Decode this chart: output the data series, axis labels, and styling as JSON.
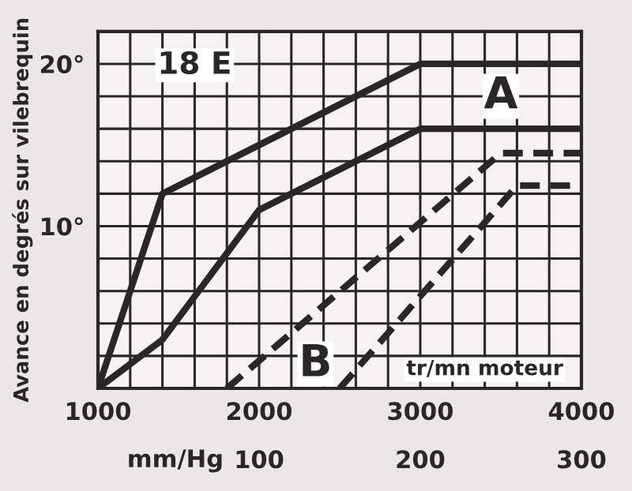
{
  "chart_data": {
    "type": "line",
    "title": "18 E",
    "xlabel": "tr/mn moteur",
    "ylabel": "Avance en degrés sur vilebrequin",
    "x2label": "mm/Hg",
    "series": [
      {
        "color": "#2a2628",
        "line_style": "solid",
        "x": [
          1000,
          1400,
          3000,
          4000
        ],
        "values": [
          0,
          12,
          20,
          20
        ]
      },
      {
        "color": "#2a2628",
        "line_style": "solid",
        "x": [
          1000,
          1400,
          2000,
          3000,
          4000
        ],
        "values": [
          0,
          3,
          11,
          16,
          16
        ]
      },
      {
        "color": "#2a2628",
        "line_style": "dashed",
        "x": [
          1800,
          3500,
          4000
        ],
        "values": [
          0,
          14.5,
          14.5
        ]
      },
      {
        "color": "#2a2628",
        "line_style": "dashed",
        "x": [
          2500,
          3600,
          4000
        ],
        "values": [
          0,
          12.5,
          12.5
        ]
      }
    ],
    "annotations": [
      {
        "text": "A",
        "x": 3500,
        "y": 18
      },
      {
        "text": "B",
        "x": 2350,
        "y": 1.5
      }
    ],
    "xlim": [
      1000,
      4000
    ],
    "xticks": [
      1000,
      {
        "value": 1200,
        "label": null
      },
      {
        "value": 1400,
        "label": null
      },
      {
        "value": 1600,
        "label": null
      },
      {
        "value": 1800,
        "label": null
      },
      2000,
      {
        "value": 2200,
        "label": null
      },
      {
        "value": 2400,
        "label": null
      },
      {
        "value": 2600,
        "label": null
      },
      {
        "value": 2800,
        "label": null
      },
      3000,
      {
        "value": 3200,
        "label": null
      },
      {
        "value": 3400,
        "label": null
      },
      {
        "value": 3600,
        "label": null
      },
      {
        "value": 3800,
        "label": null
      },
      4000
    ],
    "x2lim": [
      0,
      300
    ],
    "x2ticks": [
      100,
      200,
      300
    ],
    "ylim": [
      0,
      22
    ],
    "yticks": [
      {
        "value": 0,
        "label": null
      },
      {
        "value": 2,
        "label": null
      },
      {
        "value": 4,
        "label": null
      },
      {
        "value": 6,
        "label": null
      },
      {
        "value": 8,
        "label": null
      },
      {
        "value": 10,
        "label": "10°"
      },
      {
        "value": 12,
        "label": null
      },
      {
        "value": 14,
        "label": null
      },
      {
        "value": 16,
        "label": null
      },
      {
        "value": 18,
        "label": null
      },
      {
        "value": 20,
        "label": "20°"
      },
      {
        "value": 22,
        "label": null
      }
    ],
    "grid": true,
    "legend": false
  }
}
